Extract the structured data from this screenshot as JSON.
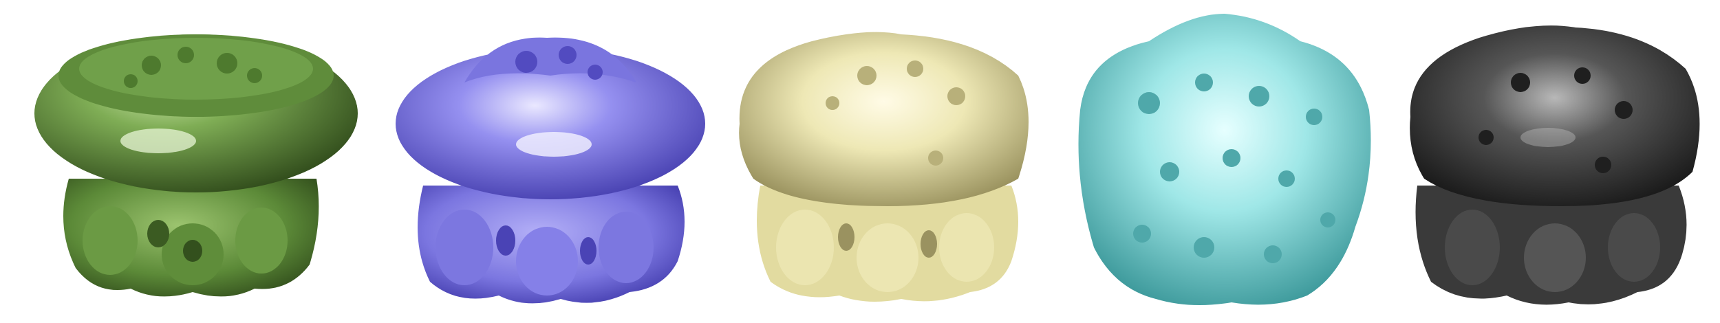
{
  "figure": {
    "panels": [
      {
        "id": "green",
        "colors": {
          "light": "#c9e3a8",
          "mid": "#6f9a4a",
          "dark": "#2f4a1a"
        }
      },
      {
        "id": "blue",
        "colors": {
          "light": "#eae8ff",
          "mid": "#8b86ea",
          "dark": "#3d36a8"
        }
      },
      {
        "id": "yellow",
        "colors": {
          "light": "#fffbe6",
          "mid": "#e8e2a8",
          "dark": "#8c8450"
        }
      },
      {
        "id": "cyan",
        "colors": {
          "light": "#e6ffff",
          "mid": "#8fe0e0",
          "dark": "#2c8c8e"
        }
      },
      {
        "id": "black",
        "colors": {
          "light": "#b8b8b8",
          "mid": "#4a4a4a",
          "dark": "#111111"
        }
      }
    ]
  }
}
